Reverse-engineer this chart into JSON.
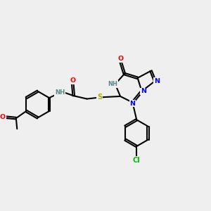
{
  "bg_color": "#efefef",
  "atom_colors": {
    "N": "#0000ee",
    "O": "#ee0000",
    "S": "#aaaa00",
    "Cl": "#00bb00",
    "H_color": "#558888",
    "C": "#000000"
  },
  "figsize": [
    3.0,
    3.0
  ],
  "dpi": 100,
  "lw": 1.5,
  "doff": 0.045
}
